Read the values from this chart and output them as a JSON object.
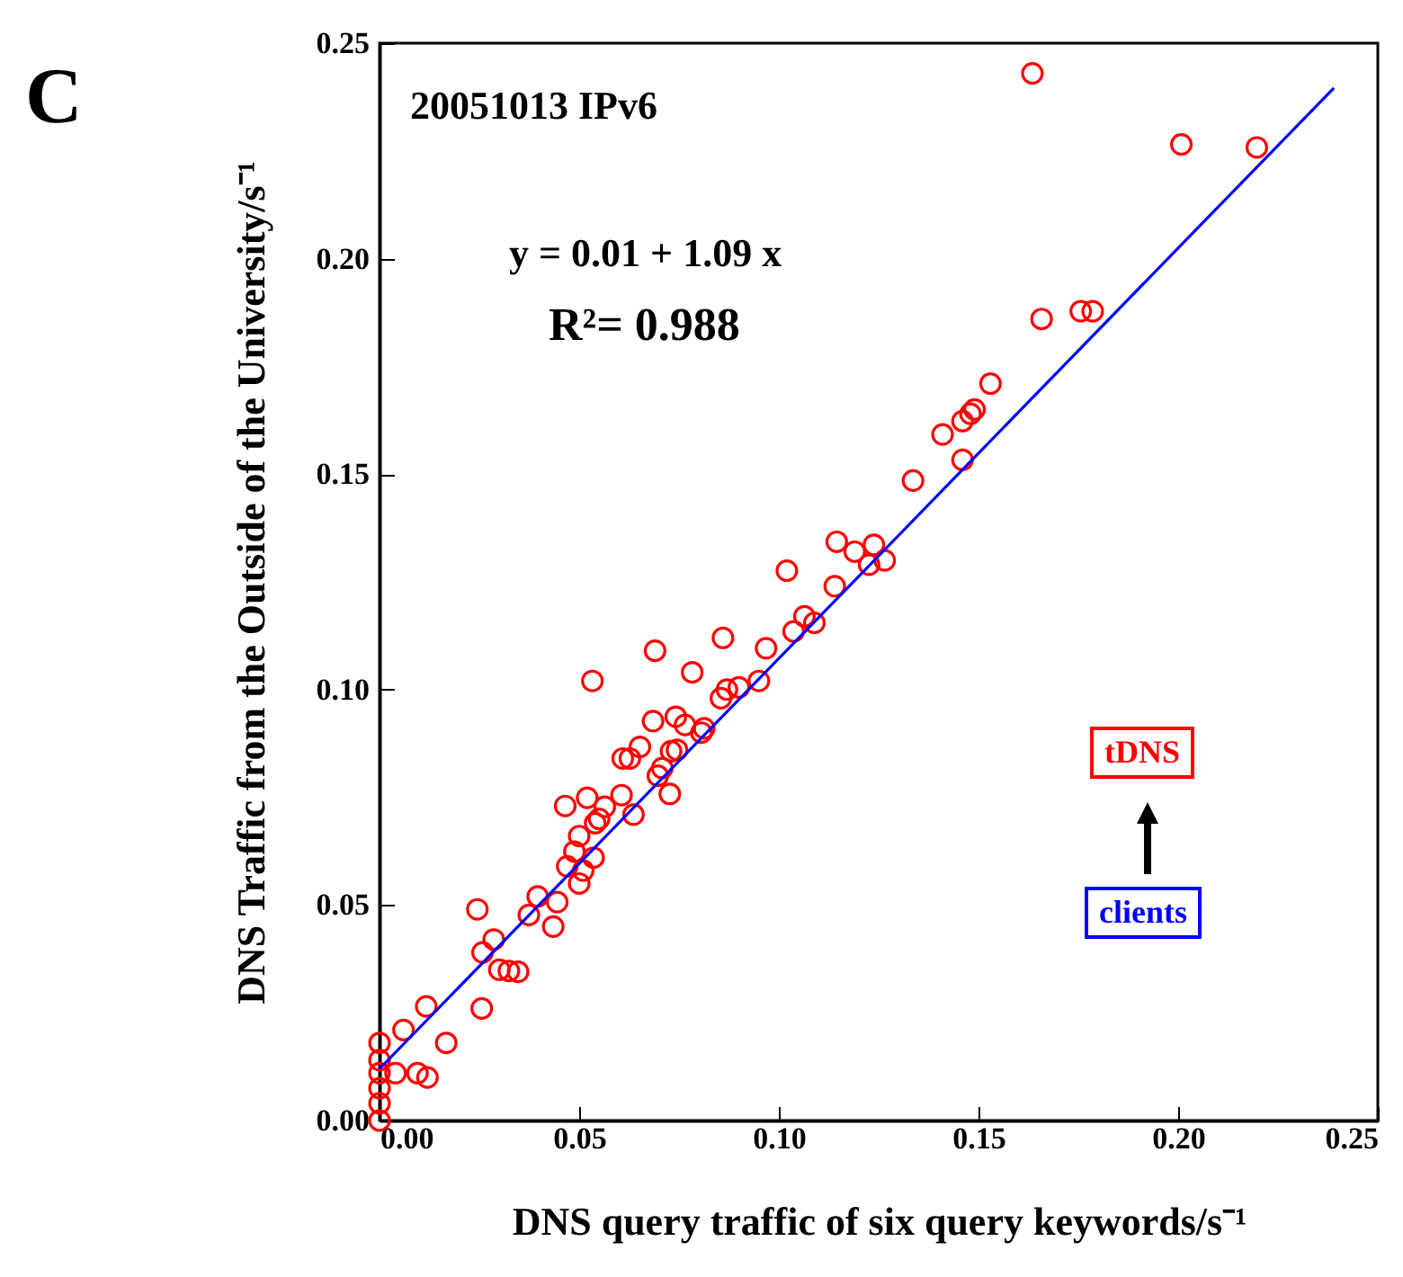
{
  "chart_data": {
    "type": "scatter",
    "xlabel": "DNS query traffic of six query keywords/s⁻¹",
    "ylabel": "DNS Traffic from the Outside of the University/s⁻¹",
    "annotations": [
      "C",
      "20051013 IPv6",
      "y =   0.01 + 1.09 x",
      "R²= 0.988",
      "tDNS",
      "clients"
    ],
    "xlim": [
      0,
      0.25
    ],
    "xticks": [
      {
        "value": 0,
        "label": "0.00"
      },
      0.05,
      {
        "value": 0.1,
        "label": "0.10"
      },
      0.15,
      {
        "value": 0.2,
        "label": "0.20"
      },
      0.25
    ],
    "ylim": [
      0,
      0.25
    ],
    "yticks": [
      {
        "value": 0,
        "label": "0.00"
      },
      0.05,
      {
        "value": 0.1,
        "label": "0.10"
      },
      0.15,
      {
        "value": 0.2,
        "label": "0.20"
      },
      0.25
    ],
    "grid": false,
    "series": [
      {
        "color": "#ff0000",
        "marker": "circle",
        "x": [
          0,
          0,
          0,
          0,
          0,
          0,
          0.004,
          0.006,
          0.0095,
          0.012,
          0.0117,
          0.0167,
          0.0245,
          0.0256,
          0.0258,
          0.0286,
          0.03,
          0.0324,
          0.0347,
          0.0374,
          0.0396,
          0.0435,
          0.0445,
          0.0465,
          0.047,
          0.0488,
          0.05,
          0.05,
          0.051,
          0.052,
          0.0533,
          0.0536,
          0.054,
          0.055,
          0.0564,
          0.0606,
          0.0609,
          0.0627,
          0.0636,
          0.0652,
          0.0685,
          0.069,
          0.0697,
          0.0708,
          0.0727,
          0.073,
          0.0742,
          0.0745,
          0.0765,
          0.0783,
          0.0806,
          0.0813,
          0.0855,
          0.086,
          0.087,
          0.09,
          0.095,
          0.0968,
          0.1037,
          0.1064,
          0.1089,
          0.102,
          0.114,
          0.1145,
          0.119,
          0.1238,
          0.1226,
          0.1265,
          0.1336,
          0.141,
          0.146,
          0.146,
          0.148,
          0.149,
          0.153,
          0.1635,
          0.1658,
          0.1756,
          0.1786,
          0.2008,
          0.2197
        ],
        "values": [
          0.018,
          0.014,
          0.011,
          0.0075,
          0.004,
          0.0,
          0.011,
          0.021,
          0.011,
          0.01,
          0.0265,
          0.018,
          0.049,
          0.026,
          0.039,
          0.042,
          0.035,
          0.0347,
          0.0345,
          0.0477,
          0.052,
          0.045,
          0.0507,
          0.073,
          0.059,
          0.0624,
          0.066,
          0.055,
          0.058,
          0.0749,
          0.102,
          0.061,
          0.069,
          0.07,
          0.0728,
          0.0755,
          0.084,
          0.084,
          0.071,
          0.0867,
          0.0927,
          0.109,
          0.08,
          0.0818,
          0.0758,
          0.0857,
          0.0937,
          0.086,
          0.0918,
          0.104,
          0.09,
          0.091,
          0.098,
          0.112,
          0.1,
          0.1005,
          0.102,
          0.1096,
          0.1135,
          0.117,
          0.1155,
          0.1276,
          0.124,
          0.1343,
          0.132,
          0.1336,
          0.129,
          0.13,
          0.1485,
          0.1592,
          0.1623,
          0.1533,
          0.164,
          0.165,
          0.171,
          0.243,
          0.186,
          0.1878,
          0.1878,
          0.2265,
          0.2258
        ]
      },
      {
        "type": "line",
        "color": "#0000ff",
        "x": [
          0,
          0.239
        ],
        "values": [
          0.012,
          0.2396
        ]
      }
    ]
  }
}
